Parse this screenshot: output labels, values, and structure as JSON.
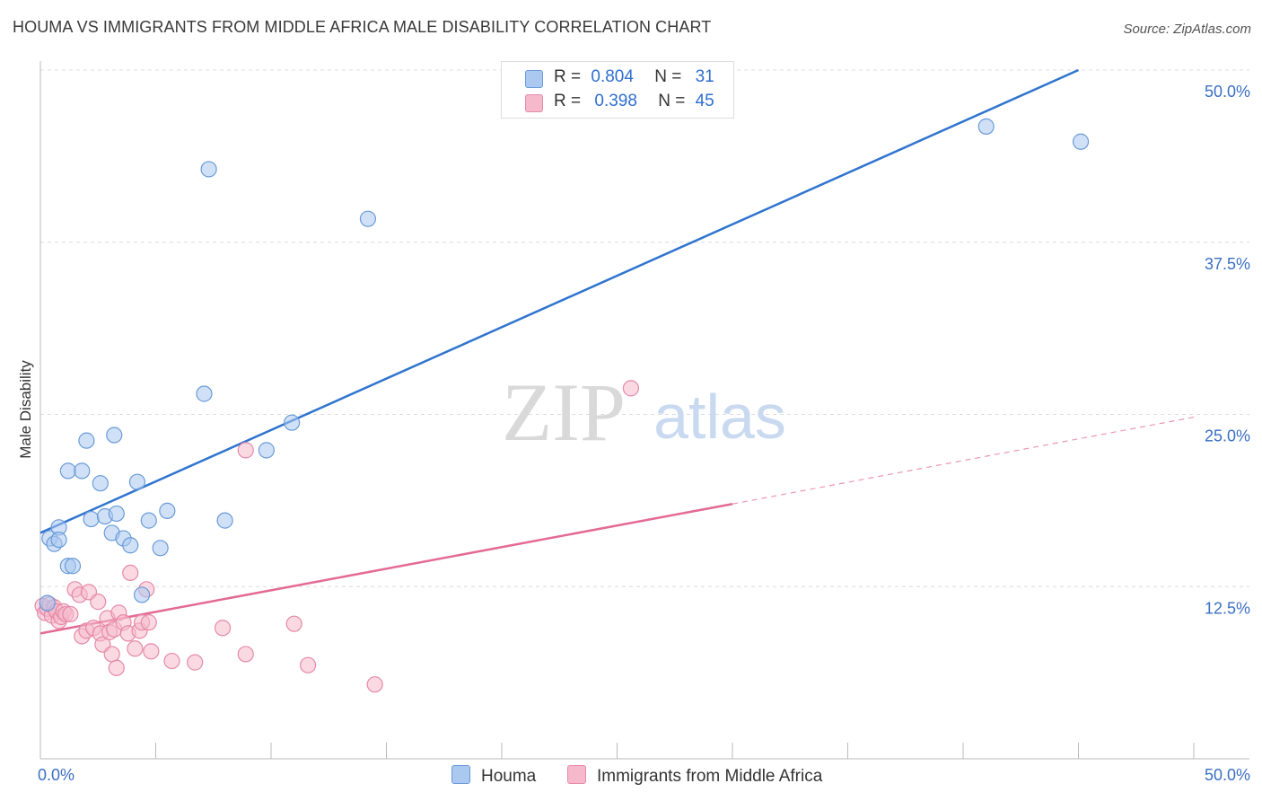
{
  "title": "HOUMA VS IMMIGRANTS FROM MIDDLE AFRICA MALE DISABILITY CORRELATION CHART",
  "source": "Source: ZipAtlas.com",
  "watermark": {
    "zip": "ZIP",
    "atlas": "atlas"
  },
  "colors": {
    "blue_fill": "#aac8f0",
    "blue_stroke": "#6a9bd8",
    "blue_line": "#2f74cf",
    "pink_fill": "#f6b9cc",
    "pink_stroke": "#e58aa8",
    "pink_line": "#e46a92",
    "grid": "#dcdcdc",
    "tick_label": "#3a6fc4"
  },
  "legend": {
    "rows": [
      {
        "r_label": "R =",
        "r_value": "0.804",
        "n_label": "N =",
        "n_value": "31"
      },
      {
        "r_label": "R =",
        "r_value": "0.398",
        "n_label": "N =",
        "n_value": "45"
      }
    ]
  },
  "bottom_legend": [
    "Houma",
    "Immigrants from Middle Africa"
  ],
  "chart_data": {
    "type": "scatter",
    "title": "HOUMA VS IMMIGRANTS FROM MIDDLE AFRICA MALE DISABILITY CORRELATION CHART",
    "xlabel": "",
    "ylabel": "Male Disability",
    "xlim": [
      0,
      50
    ],
    "ylim": [
      0,
      50
    ],
    "x_tick_labels": [
      "0.0%",
      "50.0%"
    ],
    "y_ticks": [
      12.5,
      25.0,
      37.5,
      50.0
    ],
    "y_tick_labels": [
      "12.5%",
      "25.0%",
      "37.5%",
      "50.0%"
    ],
    "grid": true,
    "legend_position": "top-center",
    "series": [
      {
        "name": "Houma",
        "r": 0.804,
        "n": 31,
        "trend": {
          "x": [
            0.0,
            45.0
          ],
          "y": [
            16.4,
            50.0
          ],
          "style": "solid"
        },
        "points": [
          [
            0.4,
            16.0
          ],
          [
            0.6,
            15.6
          ],
          [
            0.8,
            16.8
          ],
          [
            0.8,
            15.9
          ],
          [
            1.2,
            14.0
          ],
          [
            1.4,
            14.0
          ],
          [
            1.2,
            20.9
          ],
          [
            1.8,
            20.9
          ],
          [
            2.0,
            23.1
          ],
          [
            2.2,
            17.4
          ],
          [
            2.6,
            20.0
          ],
          [
            2.8,
            17.6
          ],
          [
            3.1,
            16.4
          ],
          [
            3.2,
            23.5
          ],
          [
            3.3,
            17.8
          ],
          [
            3.6,
            16.0
          ],
          [
            3.9,
            15.5
          ],
          [
            4.2,
            20.1
          ],
          [
            4.4,
            11.9
          ],
          [
            4.7,
            17.3
          ],
          [
            5.2,
            15.3
          ],
          [
            5.5,
            18.0
          ],
          [
            7.1,
            26.5
          ],
          [
            7.3,
            42.8
          ],
          [
            8.0,
            17.3
          ],
          [
            9.8,
            22.4
          ],
          [
            10.9,
            24.4
          ],
          [
            14.2,
            39.2
          ],
          [
            41.0,
            45.9
          ],
          [
            45.1,
            44.8
          ],
          [
            0.3,
            11.3
          ]
        ]
      },
      {
        "name": "Immigrants from Middle Africa",
        "r": 0.398,
        "n": 45,
        "trend": {
          "x": [
            0.0,
            30.0
          ],
          "y": [
            9.1,
            18.5
          ],
          "style": "solid",
          "extension": {
            "x": [
              30.0,
              50.0
            ],
            "y": [
              18.5,
              24.8
            ],
            "style": "dashed"
          }
        },
        "points": [
          [
            0.1,
            11.1
          ],
          [
            0.2,
            10.6
          ],
          [
            0.3,
            10.9
          ],
          [
            0.4,
            11.2
          ],
          [
            0.5,
            10.4
          ],
          [
            0.6,
            11.0
          ],
          [
            0.7,
            10.7
          ],
          [
            0.8,
            10.0
          ],
          [
            0.9,
            10.3
          ],
          [
            1.0,
            10.7
          ],
          [
            1.1,
            10.5
          ],
          [
            1.3,
            10.5
          ],
          [
            1.5,
            12.3
          ],
          [
            1.7,
            11.9
          ],
          [
            1.8,
            8.9
          ],
          [
            2.0,
            9.3
          ],
          [
            2.1,
            12.1
          ],
          [
            2.3,
            9.5
          ],
          [
            2.5,
            11.4
          ],
          [
            2.6,
            9.1
          ],
          [
            2.7,
            8.3
          ],
          [
            2.9,
            10.2
          ],
          [
            3.0,
            9.2
          ],
          [
            3.1,
            7.6
          ],
          [
            3.2,
            9.4
          ],
          [
            3.3,
            6.6
          ],
          [
            3.4,
            10.6
          ],
          [
            3.6,
            9.9
          ],
          [
            3.8,
            9.1
          ],
          [
            3.9,
            13.5
          ],
          [
            4.1,
            8.0
          ],
          [
            4.3,
            9.3
          ],
          [
            4.4,
            9.9
          ],
          [
            4.6,
            12.3
          ],
          [
            4.7,
            9.9
          ],
          [
            4.8,
            7.8
          ],
          [
            5.7,
            7.1
          ],
          [
            6.7,
            7.0
          ],
          [
            7.9,
            9.5
          ],
          [
            8.9,
            7.6
          ],
          [
            8.9,
            22.4
          ],
          [
            11.0,
            9.8
          ],
          [
            11.6,
            6.8
          ],
          [
            14.5,
            5.4
          ],
          [
            25.6,
            26.9
          ]
        ]
      }
    ]
  }
}
